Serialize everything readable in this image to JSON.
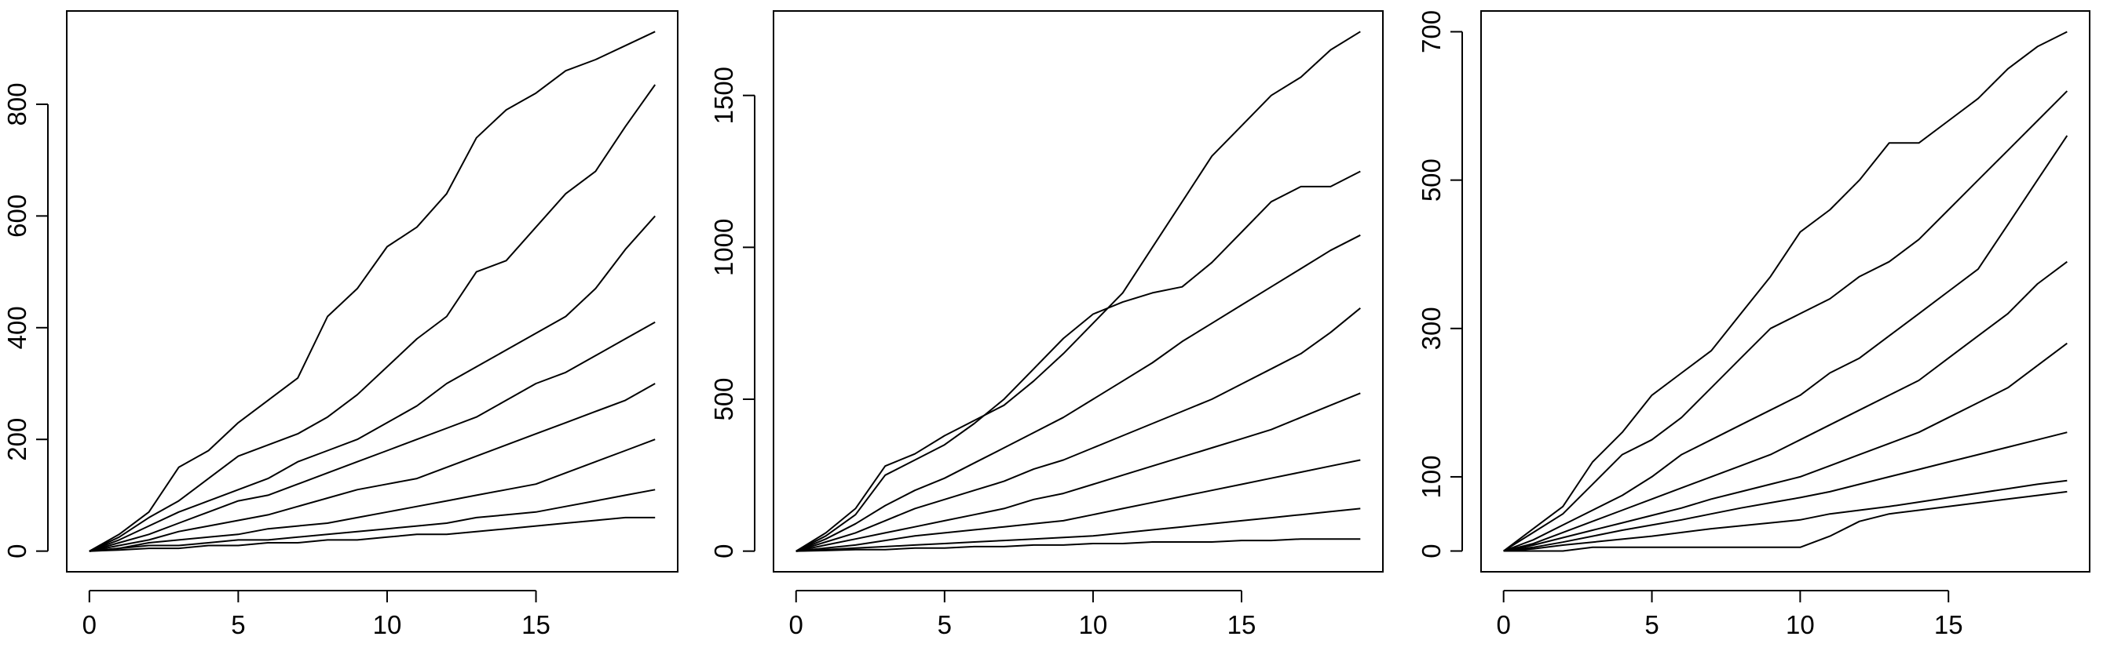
{
  "chart_data": [
    {
      "type": "line",
      "x": [
        0,
        1,
        2,
        3,
        4,
        5,
        6,
        7,
        8,
        9,
        10,
        11,
        12,
        13,
        14,
        15,
        16,
        17,
        18,
        19
      ],
      "xlim": [
        -0.76,
        19.76
      ],
      "xticks": [
        0,
        5,
        10,
        15
      ],
      "ylim": [
        -37,
        967
      ],
      "yticks": [
        0,
        200,
        400,
        600,
        800
      ],
      "series": [
        {
          "color": "#000000",
          "values": [
            0,
            30,
            70,
            150,
            180,
            230,
            270,
            310,
            420,
            470,
            545,
            580,
            640,
            740,
            790,
            820,
            860,
            880,
            905,
            930
          ]
        },
        {
          "color": "#000000",
          "values": [
            0,
            25,
            60,
            90,
            130,
            170,
            190,
            210,
            240,
            280,
            330,
            380,
            420,
            500,
            520,
            580,
            640,
            680,
            760,
            835
          ]
        },
        {
          "color": "#000000",
          "values": [
            0,
            20,
            45,
            70,
            90,
            110,
            130,
            160,
            180,
            200,
            230,
            260,
            300,
            330,
            360,
            390,
            420,
            470,
            540,
            600
          ]
        },
        {
          "color": "#000000",
          "values": [
            0,
            15,
            30,
            50,
            70,
            90,
            100,
            120,
            140,
            160,
            180,
            200,
            220,
            240,
            270,
            300,
            320,
            350,
            380,
            410
          ]
        },
        {
          "color": "#000000",
          "values": [
            0,
            10,
            20,
            35,
            45,
            55,
            65,
            80,
            95,
            110,
            120,
            130,
            150,
            170,
            190,
            210,
            230,
            250,
            270,
            300
          ]
        },
        {
          "color": "#000000",
          "values": [
            0,
            5,
            15,
            20,
            25,
            30,
            40,
            45,
            50,
            60,
            70,
            80,
            90,
            100,
            110,
            120,
            140,
            160,
            180,
            200
          ]
        },
        {
          "color": "#000000",
          "values": [
            0,
            5,
            10,
            10,
            15,
            20,
            20,
            25,
            30,
            35,
            40,
            45,
            50,
            60,
            65,
            70,
            80,
            90,
            100,
            110
          ]
        },
        {
          "color": "#000000",
          "values": [
            0,
            2,
            5,
            5,
            10,
            10,
            15,
            15,
            20,
            20,
            25,
            30,
            30,
            35,
            40,
            45,
            50,
            55,
            60,
            60
          ]
        }
      ]
    },
    {
      "type": "line",
      "x": [
        0,
        1,
        2,
        3,
        4,
        5,
        6,
        7,
        8,
        9,
        10,
        11,
        12,
        13,
        14,
        15,
        16,
        17,
        18,
        19
      ],
      "xlim": [
        -0.76,
        19.76
      ],
      "xticks": [
        0,
        5,
        10,
        15
      ],
      "ylim": [
        -68,
        1778
      ],
      "yticks": [
        0,
        500,
        1000,
        1500
      ],
      "series": [
        {
          "color": "#000000",
          "values": [
            0,
            60,
            140,
            280,
            320,
            380,
            430,
            480,
            560,
            650,
            750,
            850,
            1000,
            1150,
            1300,
            1400,
            1500,
            1560,
            1650,
            1710
          ]
        },
        {
          "color": "#000000",
          "values": [
            0,
            50,
            120,
            250,
            300,
            350,
            420,
            500,
            600,
            700,
            780,
            820,
            850,
            870,
            950,
            1050,
            1150,
            1200,
            1200,
            1250
          ]
        },
        {
          "color": "#000000",
          "values": [
            0,
            40,
            90,
            150,
            200,
            240,
            290,
            340,
            390,
            440,
            500,
            560,
            620,
            690,
            750,
            810,
            870,
            930,
            990,
            1040
          ]
        },
        {
          "color": "#000000",
          "values": [
            0,
            30,
            60,
            100,
            140,
            170,
            200,
            230,
            270,
            300,
            340,
            380,
            420,
            460,
            500,
            550,
            600,
            650,
            720,
            800
          ]
        },
        {
          "color": "#000000",
          "values": [
            0,
            20,
            40,
            60,
            80,
            100,
            120,
            140,
            170,
            190,
            220,
            250,
            280,
            310,
            340,
            370,
            400,
            440,
            480,
            520
          ]
        },
        {
          "color": "#000000",
          "values": [
            0,
            10,
            20,
            35,
            50,
            60,
            70,
            80,
            90,
            100,
            120,
            140,
            160,
            180,
            200,
            220,
            240,
            260,
            280,
            300
          ]
        },
        {
          "color": "#000000",
          "values": [
            0,
            5,
            10,
            15,
            20,
            25,
            30,
            35,
            40,
            45,
            50,
            60,
            70,
            80,
            90,
            100,
            110,
            120,
            130,
            140
          ]
        },
        {
          "color": "#000000",
          "values": [
            0,
            2,
            5,
            5,
            10,
            10,
            15,
            15,
            20,
            20,
            25,
            25,
            30,
            30,
            30,
            35,
            35,
            40,
            40,
            40
          ]
        }
      ]
    },
    {
      "type": "line",
      "x": [
        0,
        1,
        2,
        3,
        4,
        5,
        6,
        7,
        8,
        9,
        10,
        11,
        12,
        13,
        14,
        15,
        16,
        17,
        18,
        19
      ],
      "xlim": [
        -0.76,
        19.76
      ],
      "xticks": [
        0,
        5,
        10,
        15
      ],
      "ylim": [
        -28,
        728
      ],
      "yticks": [
        0,
        100,
        300,
        500,
        700
      ],
      "series": [
        {
          "color": "#000000",
          "values": [
            0,
            30,
            60,
            120,
            160,
            210,
            240,
            270,
            320,
            370,
            430,
            460,
            500,
            550,
            550,
            580,
            610,
            650,
            680,
            700
          ]
        },
        {
          "color": "#000000",
          "values": [
            0,
            25,
            50,
            90,
            130,
            150,
            180,
            220,
            260,
            300,
            320,
            340,
            370,
            390,
            420,
            460,
            500,
            540,
            580,
            620
          ]
        },
        {
          "color": "#000000",
          "values": [
            0,
            15,
            35,
            55,
            75,
            100,
            130,
            150,
            170,
            190,
            210,
            240,
            260,
            290,
            320,
            350,
            380,
            440,
            500,
            560
          ]
        },
        {
          "color": "#000000",
          "values": [
            0,
            10,
            25,
            40,
            55,
            70,
            85,
            100,
            115,
            130,
            150,
            170,
            190,
            210,
            230,
            260,
            290,
            320,
            360,
            390
          ]
        },
        {
          "color": "#000000",
          "values": [
            0,
            8,
            18,
            28,
            38,
            48,
            58,
            70,
            80,
            90,
            100,
            115,
            130,
            145,
            160,
            180,
            200,
            220,
            250,
            280
          ]
        },
        {
          "color": "#000000",
          "values": [
            0,
            5,
            12,
            20,
            28,
            35,
            42,
            50,
            58,
            65,
            72,
            80,
            90,
            100,
            110,
            120,
            130,
            140,
            150,
            160
          ]
        },
        {
          "color": "#000000",
          "values": [
            0,
            3,
            8,
            12,
            16,
            20,
            25,
            30,
            34,
            38,
            42,
            50,
            55,
            60,
            66,
            72,
            78,
            84,
            90,
            95
          ]
        },
        {
          "color": "#000000",
          "values": [
            0,
            0,
            0,
            5,
            5,
            5,
            5,
            5,
            5,
            5,
            5,
            20,
            40,
            50,
            55,
            60,
            65,
            70,
            75,
            80
          ]
        }
      ]
    }
  ]
}
